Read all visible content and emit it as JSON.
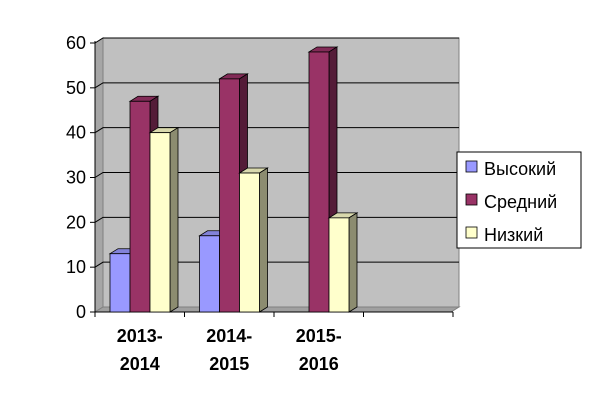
{
  "chart_data": {
    "type": "bar",
    "style": "3d-clustered-column",
    "categories": [
      "2013-2014",
      "2014-2015",
      "2015-2016",
      ""
    ],
    "category_lines": [
      [
        "2013-",
        "2014"
      ],
      [
        "2014-",
        "2015"
      ],
      [
        "2015-",
        "2016"
      ],
      [
        "",
        ""
      ]
    ],
    "series": [
      {
        "name": "Высокий",
        "values": [
          13,
          17,
          0,
          null
        ],
        "color": "#9999ff"
      },
      {
        "name": "Средний",
        "values": [
          47,
          52,
          58,
          null
        ],
        "color": "#993366"
      },
      {
        "name": "Низкий",
        "values": [
          40,
          31,
          21,
          null
        ],
        "color": "#ffffcc"
      }
    ],
    "yticks": [
      0,
      10,
      20,
      30,
      40,
      50,
      60
    ],
    "ylim": [
      0,
      60
    ],
    "grid": true,
    "plot_background": "#c0c0c0",
    "legend_position": "right"
  }
}
